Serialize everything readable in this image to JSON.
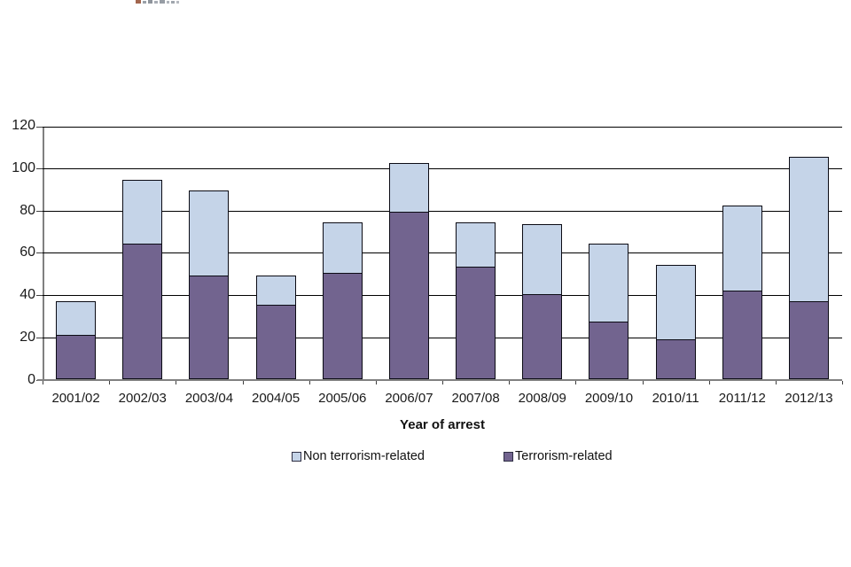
{
  "artifacts": {
    "clipped_fragment_blocks": [
      {
        "w": 6,
        "h": 4,
        "c": "#a2664e"
      },
      {
        "w": 4,
        "h": 3,
        "c": "#9aa0a8"
      },
      {
        "w": 5,
        "h": 4,
        "c": "#8e949c"
      },
      {
        "w": 4,
        "h": 3,
        "c": "#a8adb5"
      },
      {
        "w": 6,
        "h": 4,
        "c": "#979da5"
      },
      {
        "w": 3,
        "h": 3,
        "c": "#b0b5bc"
      },
      {
        "w": 4,
        "h": 3,
        "c": "#a0a6ae"
      },
      {
        "w": 3,
        "h": 3,
        "c": "#b6bac0"
      }
    ]
  },
  "chart_data": {
    "type": "bar",
    "stacked": true,
    "title": "",
    "xlabel": "Year of arrest",
    "ylabel": "",
    "ylim": [
      0,
      120
    ],
    "yticks": [
      0,
      20,
      40,
      60,
      80,
      100,
      120
    ],
    "grid": true,
    "legend_position": "bottom",
    "categories": [
      "2001/02",
      "2002/03",
      "2003/04",
      "2004/05",
      "2005/06",
      "2006/07",
      "2007/08",
      "2008/09",
      "2009/10",
      "2010/11",
      "2011/12",
      "2012/13"
    ],
    "series": [
      {
        "name": "Terrorism-related",
        "color": "#72648f",
        "values": [
          21,
          64,
          49,
          35,
          50,
          79,
          53,
          40,
          27,
          19,
          42,
          37
        ]
      },
      {
        "name": "Non terrorism-related",
        "color": "#c5d4e8",
        "values": [
          16,
          30,
          40,
          14,
          24,
          23,
          21,
          33,
          37,
          35,
          40,
          68
        ]
      }
    ],
    "totals": [
      37,
      94,
      89,
      49,
      74,
      102,
      74,
      73,
      64,
      54,
      82,
      105
    ]
  },
  "legend": {
    "items": [
      {
        "label": "Non terrorism-related",
        "color": "#c5d4e8"
      },
      {
        "label": "Terrorism-related",
        "color": "#72648f"
      }
    ]
  },
  "colors": {
    "gridline": "#000000",
    "axis_line": "#808080",
    "bar_border": "#0b0b14",
    "text": "#1a1a1a"
  }
}
